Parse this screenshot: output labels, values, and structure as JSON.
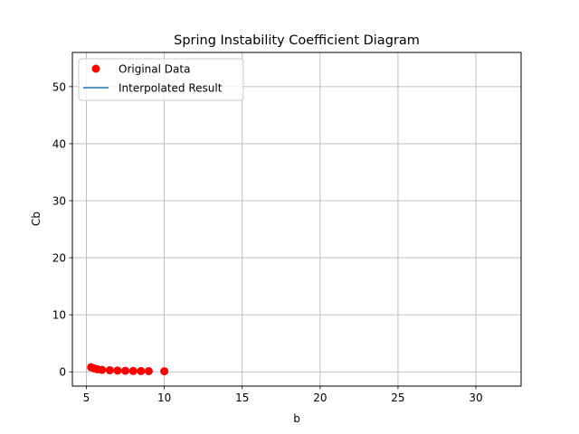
{
  "chart_data": {
    "type": "scatter",
    "title": "Spring Instability Coefficient Diagram",
    "xlabel": "b",
    "ylabel": "Cb",
    "xlim": [
      4.1,
      32.9
    ],
    "ylim": [
      -2.5,
      56.0
    ],
    "xticks": [
      5,
      10,
      15,
      20,
      25,
      30
    ],
    "yticks": [
      0,
      10,
      20,
      30,
      40,
      50
    ],
    "grid": true,
    "legend_position": "top-left",
    "series": [
      {
        "name": "Original Data",
        "kind": "markers",
        "color": "#ff0000",
        "x": [
          5.3,
          5.5,
          5.7,
          6.0,
          6.5,
          7.0,
          7.5,
          8.0,
          8.5,
          9.0,
          10.0
        ],
        "y": [
          0.8,
          0.6,
          0.45,
          0.35,
          0.28,
          0.22,
          0.18,
          0.15,
          0.13,
          0.12,
          0.1
        ]
      },
      {
        "name": "Interpolated Result",
        "kind": "line",
        "color": "#1f77b4",
        "x": [],
        "y": []
      }
    ]
  }
}
